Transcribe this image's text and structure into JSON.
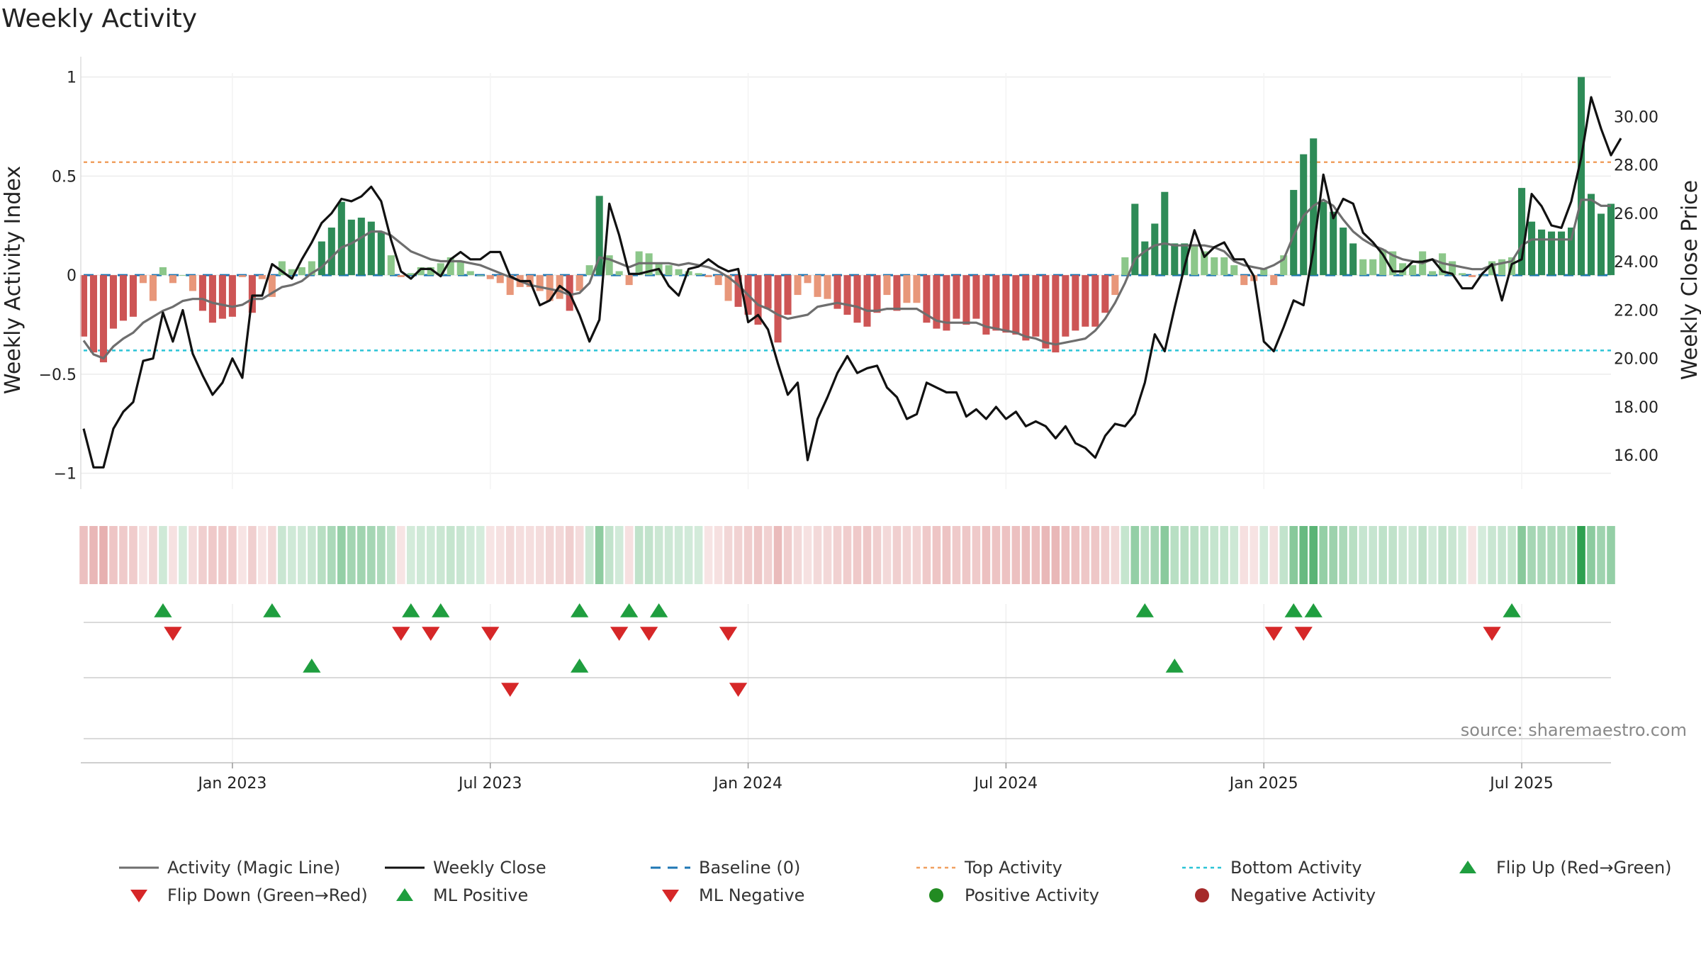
{
  "title": "Weekly Activity",
  "source": "source: sharemaestro.com",
  "colors": {
    "posStrong": "#2e8b57",
    "posWeak": "#8cc78a",
    "negStrong": "#cd5555",
    "negWeak": "#e8977a",
    "magic": "#6e6e6e",
    "close": "#111111",
    "baseline": "#1f77b4",
    "top": "#f0a060",
    "bottom": "#2bc4d6",
    "flipUp": "#1f9e3f",
    "flipDown": "#d62728"
  },
  "chart_data": {
    "type": "bar",
    "title": "Weekly Activity",
    "left_axis": {
      "label": "Weekly Activity Index",
      "ylim": [
        -1.08,
        1.02
      ],
      "ticks": [
        1,
        0.5,
        0,
        -0.5,
        -1
      ],
      "tick_labels": [
        "1",
        "0.5",
        "0",
        "−0.5",
        "−1"
      ]
    },
    "right_axis": {
      "label": "Weekly Close Price",
      "ylim": [
        14.6,
        31.8
      ],
      "ticks": [
        30,
        28,
        26,
        24,
        22,
        20,
        18,
        16
      ],
      "tick_labels": [
        "30.00",
        "28.00",
        "26.00",
        "24.00",
        "22.00",
        "20.00",
        "18.00",
        "16.00"
      ]
    },
    "x_axis": {
      "start_week": 0,
      "end_week": 159,
      "date_ticks": [
        {
          "week": 15,
          "label": "Jan 2023"
        },
        {
          "week": 41,
          "label": "Jul 2023"
        },
        {
          "week": 67,
          "label": "Jan 2024"
        },
        {
          "week": 93,
          "label": "Jul 2024"
        },
        {
          "week": 119,
          "label": "Jan 2025"
        },
        {
          "week": 145,
          "label": "Jul 2025"
        }
      ]
    },
    "reference_lines": {
      "baseline": 0,
      "top_activity": 0.57,
      "bottom_activity": -0.38
    },
    "grid": true,
    "activity_bars": [
      -0.31,
      -0.39,
      -0.44,
      -0.27,
      -0.23,
      -0.21,
      -0.04,
      -0.13,
      0.04,
      -0.04,
      0,
      -0.08,
      -0.18,
      -0.24,
      -0.22,
      -0.21,
      -0.01,
      -0.19,
      -0.02,
      -0.11,
      0.07,
      0.03,
      0.04,
      0.07,
      0.17,
      0.24,
      0.37,
      0.28,
      0.29,
      0.27,
      0.22,
      0.1,
      -0.01,
      0.01,
      0.04,
      0.04,
      0.06,
      0.09,
      0.07,
      0.02,
      0,
      -0.02,
      -0.04,
      -0.1,
      -0.06,
      -0.06,
      -0.08,
      -0.13,
      -0.12,
      -0.18,
      -0.08,
      0.05,
      0.4,
      0.1,
      0.02,
      -0.05,
      0.12,
      0.11,
      0.06,
      0.05,
      0.03,
      0.02,
      0.01,
      -0.01,
      -0.05,
      -0.13,
      -0.16,
      -0.2,
      -0.25,
      -0.17,
      -0.34,
      -0.2,
      -0.1,
      -0.04,
      -0.11,
      -0.12,
      -0.17,
      -0.2,
      -0.24,
      -0.26,
      -0.19,
      -0.1,
      -0.18,
      -0.14,
      -0.14,
      -0.24,
      -0.27,
      -0.28,
      -0.22,
      -0.25,
      -0.22,
      -0.3,
      -0.28,
      -0.29,
      -0.3,
      -0.33,
      -0.31,
      -0.37,
      -0.39,
      -0.31,
      -0.28,
      -0.26,
      -0.26,
      -0.19,
      -0.1,
      0.09,
      0.36,
      0.17,
      0.26,
      0.42,
      0.16,
      0.16,
      0.15,
      0.12,
      0.09,
      0.09,
      0.05,
      -0.05,
      -0.03,
      0.03,
      -0.05,
      0.1,
      0.43,
      0.61,
      0.69,
      0.37,
      0.32,
      0.24,
      0.16,
      0.08,
      0.08,
      0.13,
      0.12,
      0.06,
      0.05,
      0.12,
      0.02,
      0.11,
      0.07,
      0.01,
      -0.01,
      0,
      0.07,
      0.08,
      0.09,
      0.44,
      0.27,
      0.23,
      0.22,
      0.22,
      0.24,
      1.0,
      0.41,
      0.31,
      0.36
    ],
    "magic_line": [
      -0.33,
      -0.4,
      -0.42,
      -0.36,
      -0.32,
      -0.29,
      -0.24,
      -0.21,
      -0.18,
      -0.16,
      -0.13,
      -0.12,
      -0.12,
      -0.14,
      -0.15,
      -0.16,
      -0.15,
      -0.12,
      -0.12,
      -0.09,
      -0.06,
      -0.05,
      -0.03,
      0.01,
      0.04,
      0.09,
      0.14,
      0.16,
      0.19,
      0.22,
      0.22,
      0.2,
      0.16,
      0.12,
      0.1,
      0.08,
      0.07,
      0.07,
      0.07,
      0.06,
      0.05,
      0.03,
      0.01,
      -0.01,
      -0.03,
      -0.05,
      -0.06,
      -0.07,
      -0.08,
      -0.1,
      -0.09,
      -0.04,
      0.09,
      0.08,
      0.06,
      0.04,
      0.06,
      0.06,
      0.06,
      0.06,
      0.05,
      0.06,
      0.05,
      0.04,
      0.02,
      -0.01,
      -0.05,
      -0.1,
      -0.15,
      -0.17,
      -0.2,
      -0.22,
      -0.21,
      -0.2,
      -0.16,
      -0.15,
      -0.14,
      -0.15,
      -0.16,
      -0.18,
      -0.18,
      -0.17,
      -0.17,
      -0.17,
      -0.17,
      -0.2,
      -0.23,
      -0.24,
      -0.24,
      -0.24,
      -0.24,
      -0.26,
      -0.27,
      -0.28,
      -0.29,
      -0.31,
      -0.32,
      -0.34,
      -0.35,
      -0.34,
      -0.33,
      -0.32,
      -0.28,
      -0.22,
      -0.14,
      -0.04,
      0.08,
      0.12,
      0.15,
      0.16,
      0.15,
      0.15,
      0.15,
      0.15,
      0.14,
      0.12,
      0.07,
      0.05,
      0.04,
      0.03,
      0.05,
      0.08,
      0.2,
      0.3,
      0.35,
      0.38,
      0.35,
      0.28,
      0.22,
      0.18,
      0.15,
      0.13,
      0.1,
      0.08,
      0.07,
      0.06,
      0.08,
      0.06,
      0.05,
      0.04,
      0.03,
      0.03,
      0.05,
      0.06,
      0.07,
      0.15,
      0.18,
      0.18,
      0.18,
      0.18,
      0.18,
      0.38,
      0.38,
      0.35,
      0.35
    ],
    "weekly_close": [
      17.1,
      15.5,
      15.5,
      17.1,
      17.8,
      18.2,
      19.9,
      20.0,
      21.9,
      20.7,
      22.0,
      20.2,
      19.3,
      18.5,
      19.0,
      20.0,
      19.2,
      22.6,
      22.6,
      23.9,
      23.6,
      23.3,
      24.1,
      24.8,
      25.6,
      26.0,
      26.6,
      26.5,
      26.7,
      27.1,
      26.5,
      24.9,
      23.6,
      23.3,
      23.7,
      23.7,
      23.4,
      24.1,
      24.4,
      24.1,
      24.1,
      24.4,
      24.4,
      23.4,
      23.2,
      23.2,
      22.2,
      22.4,
      23.0,
      22.7,
      21.8,
      20.7,
      21.6,
      26.4,
      25.1,
      23.5,
      23.5,
      23.6,
      23.7,
      23.0,
      22.6,
      23.7,
      23.8,
      24.1,
      23.8,
      23.6,
      23.7,
      21.5,
      21.8,
      21.2,
      19.8,
      18.5,
      19.0,
      15.8,
      17.5,
      18.4,
      19.4,
      20.1,
      19.4,
      19.6,
      19.7,
      18.8,
      18.4,
      17.5,
      17.7,
      19.0,
      18.8,
      18.6,
      18.6,
      17.6,
      17.9,
      17.5,
      18.0,
      17.5,
      17.8,
      17.2,
      17.4,
      17.2,
      16.7,
      17.2,
      16.5,
      16.3,
      15.9,
      16.8,
      17.3,
      17.2,
      17.7,
      19.0,
      21.0,
      20.3,
      22.1,
      23.8,
      25.3,
      24.2,
      24.6,
      24.8,
      24.1,
      24.1,
      23.4,
      20.7,
      20.3,
      21.3,
      22.4,
      22.2,
      24.5,
      27.6,
      25.8,
      26.6,
      26.4,
      25.2,
      24.8,
      24.3,
      23.6,
      23.6,
      24.0,
      24.0,
      24.1,
      23.6,
      23.5,
      22.9,
      22.9,
      23.5,
      23.9,
      22.4,
      23.9,
      24.1,
      26.8,
      26.3,
      25.5,
      25.4,
      26.5,
      28.3,
      30.8,
      29.5,
      28.4,
      29.1
    ],
    "flip_up_weeks": [
      8,
      19,
      33,
      36,
      50,
      55,
      58,
      107,
      122,
      124,
      144
    ],
    "flip_down_weeks": [
      9,
      32,
      35,
      41,
      54,
      57,
      65,
      120,
      123,
      142
    ],
    "ml_positive_weeks": [
      23,
      50,
      110
    ],
    "ml_negative_weeks": [
      43,
      66
    ],
    "legend": [
      "Activity (Magic Line)",
      "Weekly Close",
      "Baseline (0)",
      "Top Activity",
      "Bottom Activity",
      "Flip Up (Red→Green)",
      "Flip Down (Green→Red)",
      "ML Positive",
      "ML Negative",
      "Positive Activity",
      "Negative Activity"
    ],
    "legend_placement": "bottom"
  }
}
